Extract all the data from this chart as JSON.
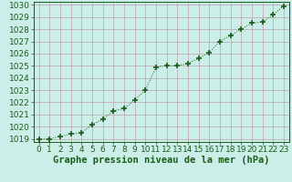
{
  "x": [
    0,
    1,
    2,
    3,
    4,
    5,
    6,
    7,
    8,
    9,
    10,
    11,
    12,
    13,
    14,
    15,
    16,
    17,
    18,
    19,
    20,
    21,
    22,
    23
  ],
  "y": [
    1019.0,
    1019.0,
    1019.2,
    1019.4,
    1019.5,
    1020.2,
    1020.6,
    1021.3,
    1021.5,
    1022.2,
    1023.0,
    1024.9,
    1025.0,
    1025.0,
    1025.2,
    1025.6,
    1026.1,
    1027.0,
    1027.5,
    1028.0,
    1028.5,
    1028.6,
    1029.2,
    1029.9
  ],
  "line_color": "#1a5c1a",
  "marker": "+",
  "marker_size": 5,
  "marker_lw": 1.2,
  "bg_color": "#cceee8",
  "grid_color": "#c0a0a8",
  "ylim": [
    1018.75,
    1030.25
  ],
  "xlim": [
    -0.5,
    23.5
  ],
  "yticks": [
    1019,
    1020,
    1021,
    1022,
    1023,
    1024,
    1025,
    1026,
    1027,
    1028,
    1029,
    1030
  ],
  "xticks": [
    0,
    1,
    2,
    3,
    4,
    5,
    6,
    7,
    8,
    9,
    10,
    11,
    12,
    13,
    14,
    15,
    16,
    17,
    18,
    19,
    20,
    21,
    22,
    23
  ],
  "xlabel": "Graphe pression niveau de la mer (hPa)",
  "xlabel_color": "#1a5c1a",
  "tick_color": "#1a5c1a",
  "axis_color": "#1a5c1a",
  "xlabel_fontsize": 7.5,
  "tick_fontsize": 6.5
}
